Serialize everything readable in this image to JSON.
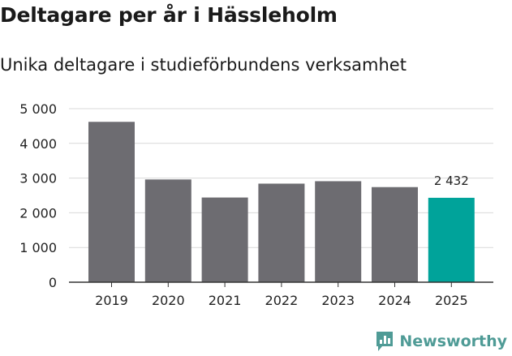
{
  "title": "Deltagare per år i Hässleholm",
  "subtitle": "Unika deltagare i studieförbundens verksamhet",
  "brand": {
    "name": "Newsworthy",
    "color": "#4f9b96"
  },
  "colors": {
    "bar": "#6d6c71",
    "highlight": "#00a39a",
    "grid": "#d9d9d9",
    "axis": "#333333"
  },
  "chart_data": {
    "type": "bar",
    "title": "Deltagare per år i Hässleholm",
    "subtitle": "Unika deltagare i studieförbundens verksamhet",
    "xlabel": "",
    "ylabel": "",
    "categories": [
      "2019",
      "2020",
      "2021",
      "2022",
      "2023",
      "2024",
      "2025"
    ],
    "values": [
      4620,
      2960,
      2440,
      2840,
      2910,
      2740,
      2432
    ],
    "highlight_index": 6,
    "data_labels": [
      {
        "index": 6,
        "text": "2 432"
      }
    ],
    "yticks": [
      0,
      1000,
      2000,
      3000,
      4000,
      5000
    ],
    "ytick_labels": [
      "0",
      "1 000",
      "2 000",
      "3 000",
      "4 000",
      "5 000"
    ],
    "ylim": [
      0,
      5000
    ],
    "grid": true
  }
}
